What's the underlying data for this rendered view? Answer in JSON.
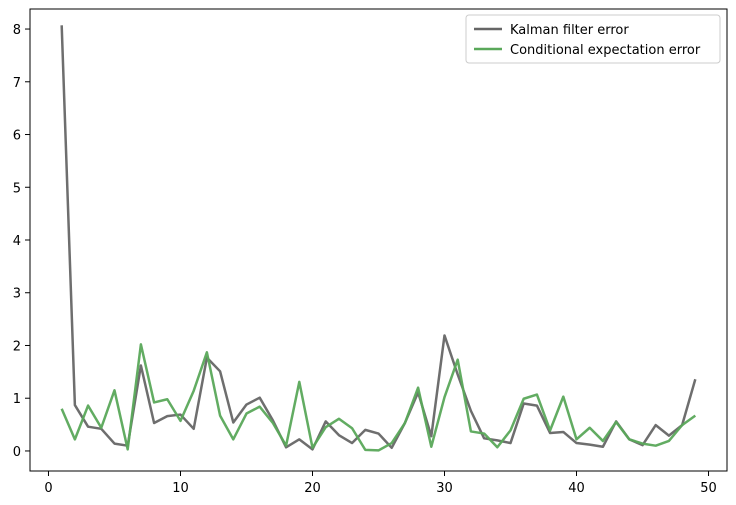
{
  "chart_data": {
    "type": "line",
    "title": "",
    "xlabel": "",
    "ylabel": "",
    "xlim": [
      -1.4,
      51.4
    ],
    "ylim": [
      -0.38,
      8.38
    ],
    "xticks": [
      0,
      10,
      20,
      30,
      40,
      50
    ],
    "yticks": [
      0,
      1,
      2,
      3,
      4,
      5,
      6,
      7,
      8
    ],
    "grid": false,
    "legend_position": "top-right",
    "x": [
      1,
      2,
      3,
      4,
      5,
      6,
      7,
      8,
      9,
      10,
      11,
      12,
      13,
      14,
      15,
      16,
      17,
      18,
      19,
      20,
      21,
      22,
      23,
      24,
      25,
      26,
      27,
      28,
      29,
      30,
      31,
      32,
      33,
      34,
      35,
      36,
      37,
      38,
      39,
      40,
      41,
      42,
      43,
      44,
      45,
      46,
      47,
      48,
      49
    ],
    "series": [
      {
        "name": "Kalman filter error",
        "color": "#666666",
        "values": [
          8.07,
          0.87,
          0.46,
          0.42,
          0.14,
          0.1,
          1.62,
          0.53,
          0.66,
          0.69,
          0.42,
          1.77,
          1.51,
          0.54,
          0.88,
          1.01,
          0.58,
          0.07,
          0.22,
          0.03,
          0.56,
          0.3,
          0.15,
          0.4,
          0.33,
          0.06,
          0.53,
          1.11,
          0.28,
          2.19,
          1.45,
          0.76,
          0.24,
          0.2,
          0.15,
          0.9,
          0.86,
          0.34,
          0.36,
          0.15,
          0.12,
          0.08,
          0.56,
          0.22,
          0.11,
          0.49,
          0.29,
          0.49,
          1.36
        ]
      },
      {
        "name": "Conditional expectation error",
        "color": "#5aa85a",
        "values": [
          0.8,
          0.22,
          0.86,
          0.44,
          1.15,
          0.03,
          2.02,
          0.92,
          0.98,
          0.57,
          1.14,
          1.87,
          0.67,
          0.22,
          0.71,
          0.84,
          0.53,
          0.1,
          1.31,
          0.06,
          0.45,
          0.61,
          0.43,
          0.02,
          0.01,
          0.15,
          0.53,
          1.2,
          0.08,
          1.02,
          1.73,
          0.37,
          0.33,
          0.07,
          0.39,
          0.99,
          1.07,
          0.39,
          1.03,
          0.22,
          0.44,
          0.19,
          0.55,
          0.22,
          0.14,
          0.1,
          0.19,
          0.49,
          0.67
        ]
      }
    ]
  }
}
